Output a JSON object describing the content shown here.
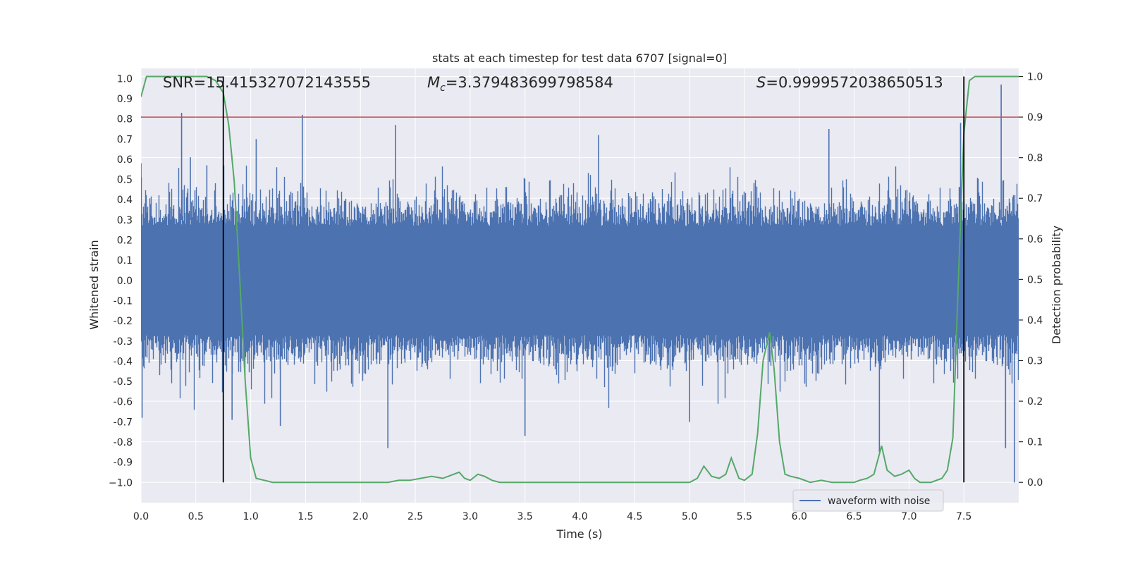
{
  "chart_data": {
    "type": "line",
    "title": "stats at each timestep for test data 6707 [signal=0]",
    "xlabel": "Time (s)",
    "ylabel": "Whitened strain",
    "y2label": "Detection probability",
    "xlim": [
      0.0,
      8.0
    ],
    "ylim": [
      -1.1,
      1.05
    ],
    "y2lim": [
      -0.05,
      1.02
    ],
    "x_ticks": [
      0.0,
      0.5,
      1.0,
      1.5,
      2.0,
      2.5,
      3.0,
      3.5,
      4.0,
      4.5,
      5.0,
      5.5,
      6.0,
      6.5,
      7.0,
      7.5
    ],
    "x_tick_labels": [
      "0.0",
      "0.5",
      "1.0",
      "1.5",
      "2.0",
      "2.5",
      "3.0",
      "3.5",
      "4.0",
      "4.5",
      "5.0",
      "5.5",
      "6.0",
      "6.5",
      "7.0",
      "7.5"
    ],
    "y_ticks": [
      1.0,
      0.9,
      0.8,
      0.7,
      0.6,
      0.5,
      0.4,
      0.3,
      0.2,
      0.1,
      0.0,
      -0.1,
      -0.2,
      -0.3,
      -0.4,
      -0.5,
      -0.6,
      -0.7,
      -0.8,
      -0.9,
      -1.0
    ],
    "y_tick_labels": [
      "1.0",
      "0.9",
      "0.8",
      "0.7",
      "0.6",
      "0.5",
      "0.4",
      "0.3",
      "0.2",
      "0.1",
      "0.0",
      "-0.1",
      "-0.2",
      "-0.3",
      "-0.4",
      "-0.5",
      "-0.6",
      "-0.7",
      "-0.8",
      "-0.9",
      "−1.0"
    ],
    "y2_ticks": [
      1.0,
      0.9,
      0.8,
      0.7,
      0.6,
      0.5,
      0.4,
      0.3,
      0.2,
      0.1,
      0.0
    ],
    "y2_tick_labels": [
      "1.0",
      "0.9",
      "0.8",
      "0.7",
      "0.6",
      "0.5",
      "0.4",
      "0.3",
      "0.2",
      "0.1",
      "0.0"
    ],
    "grid": true,
    "annotations": {
      "snr": "SNR=15.415327072143555",
      "mc_symbol": "M",
      "mc_sub": "c",
      "mc_value": "=3.379483699798584",
      "s_symbol": "S",
      "s_value": "=0.9999572038650513"
    },
    "legend": {
      "entries": [
        "waveform with noise"
      ],
      "location": "lower-right"
    },
    "threshold": {
      "axis": "y2",
      "value": 0.9,
      "color": "#c44e52"
    },
    "vertical_lines": [
      0.75,
      7.5
    ],
    "series": [
      {
        "name": "waveform with noise",
        "axis": "y",
        "color": "#4c72b0",
        "style": "dense-noise",
        "duration": 8.0,
        "noise_band": [
          -0.3,
          0.35
        ],
        "peaks": [
          {
            "t": 0.0,
            "v": 0.58
          },
          {
            "t": 0.01,
            "v": -0.68
          },
          {
            "t": 0.37,
            "v": 0.83
          },
          {
            "t": 0.45,
            "v": 0.61
          },
          {
            "t": 0.6,
            "v": 0.57
          },
          {
            "t": 0.83,
            "v": -0.69
          },
          {
            "t": 1.05,
            "v": 0.7
          },
          {
            "t": 1.27,
            "v": -0.72
          },
          {
            "t": 1.47,
            "v": 0.82
          },
          {
            "t": 2.25,
            "v": -0.83
          },
          {
            "t": 2.32,
            "v": 0.77
          },
          {
            "t": 3.5,
            "v": -0.77
          },
          {
            "t": 4.17,
            "v": 0.72
          },
          {
            "t": 5.0,
            "v": -0.7
          },
          {
            "t": 6.27,
            "v": 0.75
          },
          {
            "t": 6.73,
            "v": -0.85
          },
          {
            "t": 7.47,
            "v": 0.78
          },
          {
            "t": 7.84,
            "v": 0.97
          },
          {
            "t": 7.88,
            "v": -0.83
          },
          {
            "t": 7.96,
            "v": -1.0
          }
        ]
      },
      {
        "name": "detection probability",
        "axis": "y2",
        "color": "#55a868",
        "x": [
          0.0,
          0.05,
          0.15,
          0.3,
          0.45,
          0.6,
          0.68,
          0.75,
          0.8,
          0.85,
          0.9,
          0.95,
          1.0,
          1.05,
          1.2,
          1.5,
          1.8,
          2.0,
          2.25,
          2.35,
          2.45,
          2.55,
          2.65,
          2.75,
          2.85,
          2.9,
          2.95,
          3.0,
          3.07,
          3.13,
          3.2,
          3.27,
          3.35,
          3.5,
          3.75,
          4.0,
          4.2,
          4.4,
          4.6,
          4.8,
          5.0,
          5.07,
          5.13,
          5.2,
          5.27,
          5.33,
          5.38,
          5.45,
          5.5,
          5.57,
          5.62,
          5.67,
          5.73,
          5.77,
          5.82,
          5.87,
          5.92,
          6.0,
          6.1,
          6.2,
          6.3,
          6.4,
          6.5,
          6.55,
          6.62,
          6.68,
          6.75,
          6.8,
          6.87,
          6.93,
          7.0,
          7.05,
          7.1,
          7.2,
          7.3,
          7.35,
          7.4,
          7.45,
          7.5,
          7.55,
          7.6,
          7.7,
          7.8,
          7.9,
          8.0
        ],
        "y": [
          0.95,
          1.0,
          1.0,
          1.0,
          1.0,
          1.0,
          0.99,
          0.96,
          0.88,
          0.74,
          0.5,
          0.25,
          0.06,
          0.01,
          0.0,
          0.0,
          0.0,
          0.0,
          0.0,
          0.005,
          0.005,
          0.01,
          0.015,
          0.01,
          0.02,
          0.025,
          0.01,
          0.005,
          0.02,
          0.015,
          0.005,
          0.0,
          0.0,
          0.0,
          0.0,
          0.0,
          0.0,
          0.0,
          0.0,
          0.0,
          0.0,
          0.01,
          0.04,
          0.015,
          0.01,
          0.02,
          0.06,
          0.01,
          0.005,
          0.02,
          0.12,
          0.3,
          0.37,
          0.28,
          0.1,
          0.02,
          0.015,
          0.01,
          0.0,
          0.005,
          0.0,
          0.0,
          0.0,
          0.005,
          0.01,
          0.02,
          0.09,
          0.03,
          0.015,
          0.02,
          0.03,
          0.01,
          0.0,
          0.0,
          0.01,
          0.03,
          0.11,
          0.5,
          0.86,
          0.99,
          1.0,
          1.0,
          1.0,
          1.0,
          1.0
        ]
      }
    ]
  }
}
